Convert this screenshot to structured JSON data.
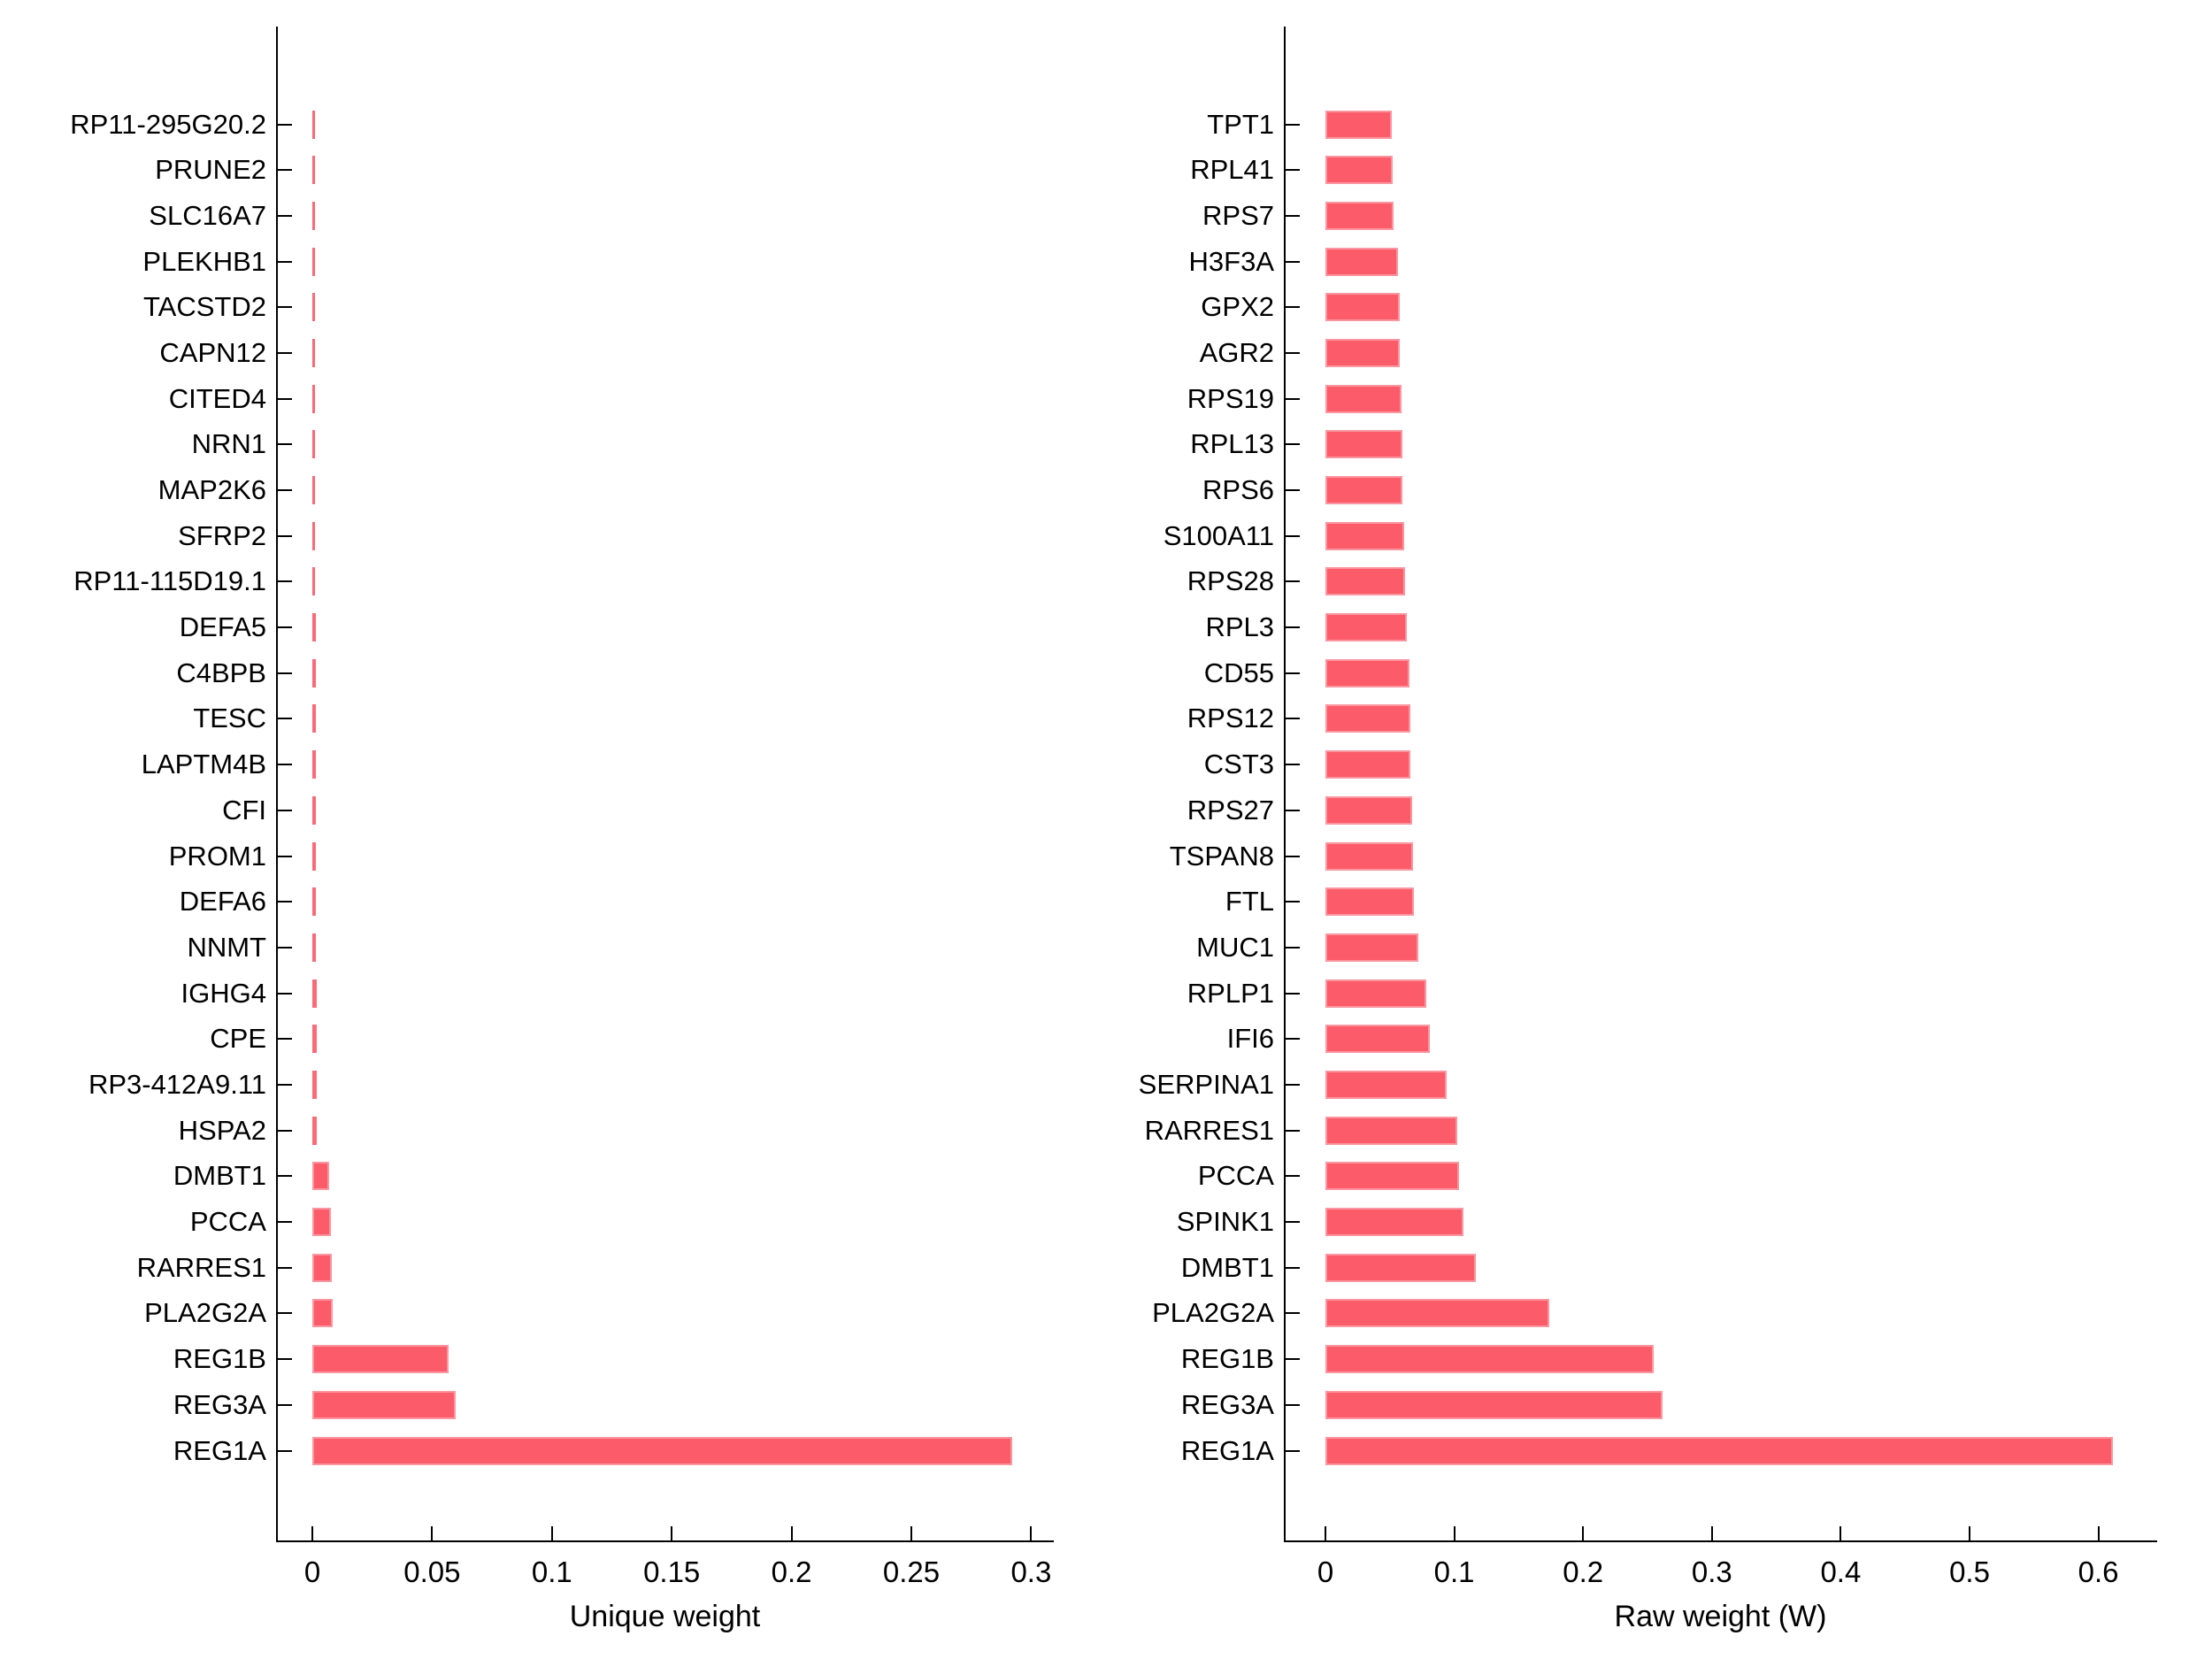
{
  "chart_data": [
    {
      "type": "bar",
      "orientation": "horizontal",
      "xlabel": "Unique weight",
      "categories_top_to_bottom": [
        "RP11-295G20.2",
        "PRUNE2",
        "SLC16A7",
        "PLEKHB1",
        "TACSTD2",
        "CAPN12",
        "CITED4",
        "NRN1",
        "MAP2K6",
        "SFRP2",
        "RP11-115D19.1",
        "DEFA5",
        "C4BPB",
        "TESC",
        "LAPTM4B",
        "CFI",
        "PROM1",
        "DEFA6",
        "NNMT",
        "IGHG4",
        "CPE",
        "RP3-412A9.11",
        "HSPA2",
        "DMBT1",
        "PCCA",
        "RARRES1",
        "PLA2G2A",
        "REG1B",
        "REG3A",
        "REG1A"
      ],
      "values": [
        0.0008,
        0.0008,
        0.0009,
        0.0009,
        0.001,
        0.001,
        0.001,
        0.0011,
        0.0011,
        0.0012,
        0.0012,
        0.0013,
        0.0013,
        0.0014,
        0.0014,
        0.0015,
        0.0015,
        0.0016,
        0.0016,
        0.0017,
        0.0018,
        0.0018,
        0.002,
        0.007,
        0.0078,
        0.008,
        0.0085,
        0.057,
        0.06,
        0.292
      ],
      "xticks": [
        0,
        0.05,
        0.1,
        0.15,
        0.2,
        0.25,
        0.3
      ],
      "xtick_labels": [
        "0",
        "0.05",
        "0.1",
        "0.15",
        "0.2",
        "0.25",
        "0.3"
      ],
      "xlim": [
        -0.015,
        0.31
      ],
      "grid": false,
      "legend": "none"
    },
    {
      "type": "bar",
      "orientation": "horizontal",
      "xlabel": "Raw weight (W)",
      "categories_top_to_bottom": [
        "TPT1",
        "RPL41",
        "RPS7",
        "H3F3A",
        "GPX2",
        "AGR2",
        "RPS19",
        "RPL13",
        "RPS6",
        "S100A11",
        "RPS28",
        "RPL3",
        "CD55",
        "RPS12",
        "CST3",
        "RPS27",
        "TSPAN8",
        "FTL",
        "MUC1",
        "RPLP1",
        "IFI6",
        "SERPINA1",
        "RARRES1",
        "PCCA",
        "SPINK1",
        "DMBT1",
        "PLA2G2A",
        "REG1B",
        "REG3A",
        "REG1A"
      ],
      "values": [
        0.0515,
        0.052,
        0.053,
        0.056,
        0.058,
        0.058,
        0.059,
        0.06,
        0.06,
        0.061,
        0.062,
        0.063,
        0.065,
        0.066,
        0.066,
        0.067,
        0.068,
        0.069,
        0.072,
        0.078,
        0.081,
        0.094,
        0.102,
        0.104,
        0.107,
        0.117,
        0.174,
        0.255,
        0.262,
        0.611
      ],
      "xticks": [
        0,
        0.1,
        0.2,
        0.3,
        0.4,
        0.5,
        0.6
      ],
      "xtick_labels": [
        "0",
        "0.1",
        "0.2",
        "0.3",
        "0.4",
        "0.5",
        "0.6"
      ],
      "xlim": [
        -0.032,
        0.646
      ],
      "grid": false,
      "legend": "none"
    }
  ],
  "colors": {
    "bar": "#FC5C6A",
    "bar_edge": "#FA96A0",
    "axis": "#000000",
    "text": "#000000",
    "background": "#FFFFFF"
  }
}
